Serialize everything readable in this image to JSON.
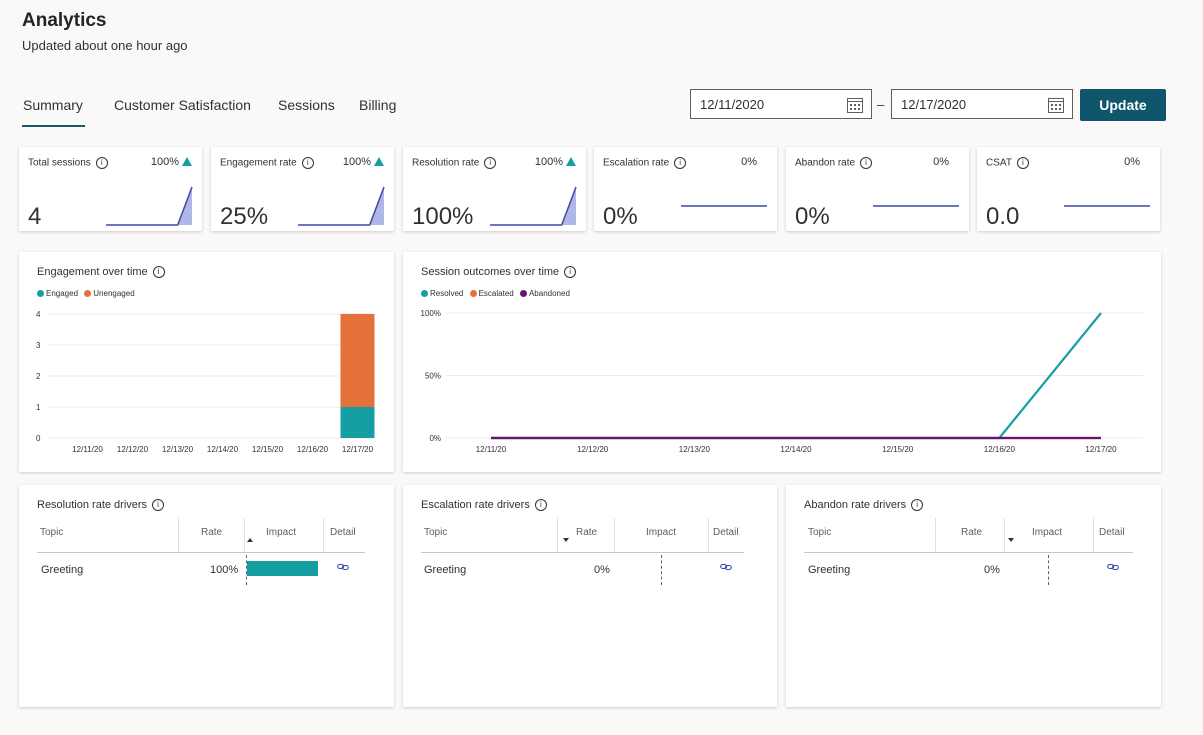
{
  "header": {
    "title": "Analytics",
    "subtitle": "Updated about one hour ago"
  },
  "tabs": [
    {
      "label": "Summary",
      "selected": true
    },
    {
      "label": "Customer Satisfaction"
    },
    {
      "label": "Sessions"
    },
    {
      "label": "Billing"
    }
  ],
  "date_range": {
    "start": "12/11/2020",
    "separator": "–",
    "end": "12/17/2020",
    "update_label": "Update"
  },
  "kpis": [
    {
      "label": "Total sessions",
      "value": "4",
      "change": "100%",
      "trend": "up",
      "spark": [
        0,
        0,
        0,
        0,
        0,
        0,
        1
      ]
    },
    {
      "label": "Engagement rate",
      "value": "25%",
      "change": "100%",
      "trend": "up",
      "spark": [
        0,
        0,
        0,
        0,
        0,
        0,
        1
      ]
    },
    {
      "label": "Resolution rate",
      "value": "100%",
      "change": "100%",
      "trend": "up",
      "spark": [
        0,
        0,
        0,
        0,
        0,
        0,
        1
      ]
    },
    {
      "label": "Escalation rate",
      "value": "0%",
      "change": "0%",
      "trend": "flat",
      "spark": [
        0,
        0,
        0,
        0,
        0,
        0,
        0
      ]
    },
    {
      "label": "Abandon rate",
      "value": "0%",
      "change": "0%",
      "trend": "flat",
      "spark": [
        0,
        0,
        0,
        0,
        0,
        0,
        0
      ]
    },
    {
      "label": "CSAT",
      "value": "0.0",
      "change": "0%",
      "trend": "flat",
      "spark": [
        0,
        0,
        0,
        0,
        0,
        0,
        0
      ]
    }
  ],
  "colors": {
    "engaged": "#159fa3",
    "unengaged": "#e6703a",
    "resolved": "#159fa3",
    "escalated": "#e6703a",
    "abandoned": "#6b1073",
    "spark_line": "#3d49a8",
    "spark_fill": "#b0b6e6",
    "accent": "#0f556b"
  },
  "chart_data": [
    {
      "type": "bar",
      "title": "Engagement over time",
      "categories": [
        "12/11/20",
        "12/12/20",
        "12/13/20",
        "12/14/20",
        "12/15/20",
        "12/16/20",
        "12/17/20"
      ],
      "series": [
        {
          "name": "Engaged",
          "values": [
            0,
            0,
            0,
            0,
            0,
            0,
            1
          ]
        },
        {
          "name": "Unengaged",
          "values": [
            0,
            0,
            0,
            0,
            0,
            0,
            3
          ]
        }
      ],
      "yticks": [
        "0",
        "1",
        "2",
        "3",
        "4"
      ],
      "ylim": [
        0,
        4
      ],
      "stacked": true,
      "legend": "top-left"
    },
    {
      "type": "line",
      "title": "Session outcomes over time",
      "categories": [
        "12/11/20",
        "12/12/20",
        "12/13/20",
        "12/14/20",
        "12/15/20",
        "12/16/20",
        "12/17/20"
      ],
      "series": [
        {
          "name": "Resolved",
          "values": [
            0,
            0,
            0,
            0,
            0,
            0,
            100
          ]
        },
        {
          "name": "Escalated",
          "values": [
            0,
            0,
            0,
            0,
            0,
            0,
            0
          ]
        },
        {
          "name": "Abandoned",
          "values": [
            0,
            0,
            0,
            0,
            0,
            0,
            0
          ]
        }
      ],
      "yticks": [
        "0%",
        "50%",
        "100%"
      ],
      "ylim": [
        0,
        100
      ],
      "legend": "top-left"
    }
  ],
  "drivers": [
    {
      "title": "Resolution rate drivers",
      "headers": [
        "Topic",
        "Rate",
        "Impact",
        "Detail"
      ],
      "rows": [
        {
          "topic": "Greeting",
          "rate": "100%",
          "impact": 1
        }
      ]
    },
    {
      "title": "Escalation rate drivers",
      "headers": [
        "Topic",
        "Rate",
        "Impact",
        "Detail"
      ],
      "rows": [
        {
          "topic": "Greeting",
          "rate": "0%",
          "impact": 0
        }
      ]
    },
    {
      "title": "Abandon rate drivers",
      "headers": [
        "Topic",
        "Rate",
        "Impact",
        "Detail"
      ],
      "rows": [
        {
          "topic": "Greeting",
          "rate": "0%",
          "impact": 0
        }
      ]
    }
  ]
}
